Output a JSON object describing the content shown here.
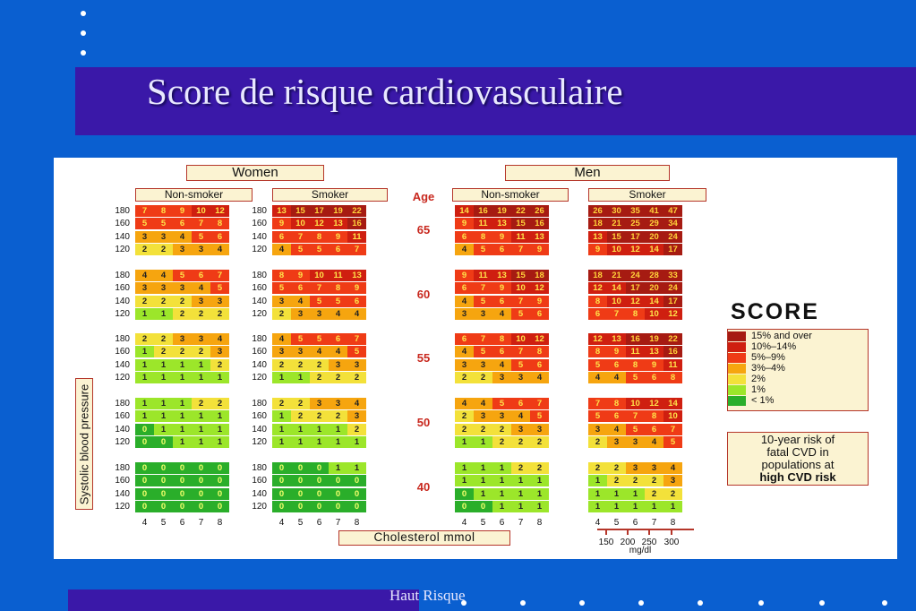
{
  "slide": {
    "title": "Score de risque cardiovasculaire",
    "footer": "Haut Risque"
  },
  "colors": {
    "background": "#0a5fd0",
    "band": "#3a18a8",
    "risk": {
      "15+": "#a61b12",
      "10-14": "#cf1f10",
      "5-9": "#ef3b16",
      "3-4": "#f6a50f",
      "2": "#f3e13a",
      "1": "#9ce62a",
      "0": "#2aae2a"
    }
  },
  "chart": {
    "women_label": "Women",
    "men_label": "Men",
    "nonsmoker_label": "Non-smoker",
    "smoker_label": "Smoker",
    "age_label": "Age",
    "ylabel": "Systolic blood pressure",
    "xlabel": "Cholesterol mmol",
    "mgdl_ticks": [
      "150",
      "200",
      "250",
      "300"
    ],
    "mgdl_unit": "mg/dl",
    "brand": "SCORE",
    "legend": [
      "15% and over",
      "10%–14%",
      "5%–9%",
      "3%–4%",
      "2%",
      "1%",
      "< 1%"
    ],
    "note_line1": "10-year risk of",
    "note_line2": "fatal CVD in",
    "note_line3": "populations at",
    "note_line4": "high CVD risk"
  },
  "chart_data": {
    "type": "heatmap",
    "title": "",
    "x": [
      4,
      5,
      6,
      7,
      8
    ],
    "y": [
      180,
      160,
      140,
      120
    ],
    "ages": [
      65,
      60,
      55,
      50,
      40
    ],
    "panels": [
      {
        "sex": "Women",
        "smoker": "Non-smoker",
        "grids": [
          [
            [
              7,
              8,
              9,
              10,
              12
            ],
            [
              5,
              5,
              6,
              7,
              8
            ],
            [
              3,
              3,
              4,
              5,
              6
            ],
            [
              2,
              2,
              3,
              3,
              4
            ]
          ],
          [
            [
              4,
              4,
              5,
              6,
              7
            ],
            [
              3,
              3,
              3,
              4,
              5
            ],
            [
              2,
              2,
              2,
              3,
              3
            ],
            [
              1,
              1,
              2,
              2,
              2
            ]
          ],
          [
            [
              2,
              2,
              3,
              3,
              4
            ],
            [
              1,
              2,
              2,
              2,
              3
            ],
            [
              1,
              1,
              1,
              1,
              2
            ],
            [
              1,
              1,
              1,
              1,
              1
            ]
          ],
          [
            [
              1,
              1,
              1,
              2,
              2
            ],
            [
              1,
              1,
              1,
              1,
              1
            ],
            [
              0,
              1,
              1,
              1,
              1
            ],
            [
              0,
              0,
              1,
              1,
              1
            ]
          ],
          [
            [
              0,
              0,
              0,
              0,
              0
            ],
            [
              0,
              0,
              0,
              0,
              0
            ],
            [
              0,
              0,
              0,
              0,
              0
            ],
            [
              0,
              0,
              0,
              0,
              0
            ]
          ]
        ]
      },
      {
        "sex": "Women",
        "smoker": "Smoker",
        "grids": [
          [
            [
              13,
              15,
              17,
              19,
              22
            ],
            [
              9,
              10,
              12,
              13,
              16
            ],
            [
              6,
              7,
              8,
              9,
              11
            ],
            [
              4,
              5,
              5,
              6,
              7
            ]
          ],
          [
            [
              8,
              9,
              10,
              11,
              13
            ],
            [
              5,
              6,
              7,
              8,
              9
            ],
            [
              3,
              4,
              5,
              5,
              6
            ],
            [
              2,
              3,
              3,
              4,
              4
            ]
          ],
          [
            [
              4,
              5,
              5,
              6,
              7
            ],
            [
              3,
              3,
              4,
              4,
              5
            ],
            [
              2,
              2,
              2,
              3,
              3
            ],
            [
              1,
              1,
              2,
              2,
              2
            ]
          ],
          [
            [
              2,
              2,
              3,
              3,
              4
            ],
            [
              1,
              2,
              2,
              2,
              3
            ],
            [
              1,
              1,
              1,
              1,
              2
            ],
            [
              1,
              1,
              1,
              1,
              1
            ]
          ],
          [
            [
              0,
              0,
              0,
              1,
              1
            ],
            [
              0,
              0,
              0,
              0,
              0
            ],
            [
              0,
              0,
              0,
              0,
              0
            ],
            [
              0,
              0,
              0,
              0,
              0
            ]
          ]
        ]
      },
      {
        "sex": "Men",
        "smoker": "Non-smoker",
        "grids": [
          [
            [
              14,
              16,
              19,
              22,
              26
            ],
            [
              9,
              11,
              13,
              15,
              16
            ],
            [
              6,
              8,
              9,
              11,
              13
            ],
            [
              4,
              5,
              6,
              7,
              9
            ]
          ],
          [
            [
              9,
              11,
              13,
              15,
              18
            ],
            [
              6,
              7,
              9,
              10,
              12
            ],
            [
              4,
              5,
              6,
              7,
              9
            ],
            [
              3,
              3,
              4,
              5,
              6
            ]
          ],
          [
            [
              6,
              7,
              8,
              10,
              12
            ],
            [
              4,
              5,
              6,
              7,
              8
            ],
            [
              3,
              3,
              4,
              5,
              6
            ],
            [
              2,
              2,
              3,
              3,
              4
            ]
          ],
          [
            [
              4,
              4,
              5,
              6,
              7
            ],
            [
              2,
              3,
              3,
              4,
              5
            ],
            [
              2,
              2,
              2,
              3,
              3
            ],
            [
              1,
              1,
              2,
              2,
              2
            ]
          ],
          [
            [
              1,
              1,
              1,
              2,
              2
            ],
            [
              1,
              1,
              1,
              1,
              1
            ],
            [
              0,
              1,
              1,
              1,
              1
            ],
            [
              0,
              0,
              1,
              1,
              1
            ]
          ]
        ]
      },
      {
        "sex": "Men",
        "smoker": "Smoker",
        "grids": [
          [
            [
              26,
              30,
              35,
              41,
              47
            ],
            [
              18,
              21,
              25,
              29,
              34
            ],
            [
              13,
              15,
              17,
              20,
              24
            ],
            [
              9,
              10,
              12,
              14,
              17
            ]
          ],
          [
            [
              18,
              21,
              24,
              28,
              33
            ],
            [
              12,
              14,
              17,
              20,
              24
            ],
            [
              8,
              10,
              12,
              14,
              17
            ],
            [
              6,
              7,
              8,
              10,
              12
            ]
          ],
          [
            [
              12,
              13,
              16,
              19,
              22
            ],
            [
              8,
              9,
              11,
              13,
              16
            ],
            [
              5,
              6,
              8,
              9,
              11
            ],
            [
              4,
              4,
              5,
              6,
              8
            ]
          ],
          [
            [
              7,
              8,
              10,
              12,
              14
            ],
            [
              5,
              6,
              7,
              8,
              10
            ],
            [
              3,
              4,
              5,
              6,
              7
            ],
            [
              2,
              3,
              3,
              4,
              5
            ]
          ],
          [
            [
              2,
              2,
              3,
              3,
              4
            ],
            [
              1,
              2,
              2,
              2,
              3
            ],
            [
              1,
              1,
              1,
              2,
              2
            ],
            [
              1,
              1,
              1,
              1,
              1
            ]
          ]
        ]
      }
    ]
  }
}
